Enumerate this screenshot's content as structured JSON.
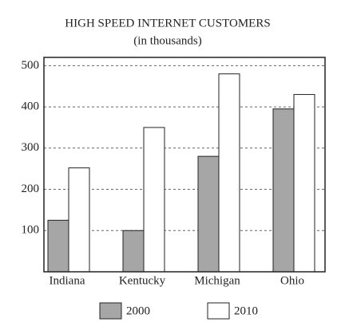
{
  "chart_data": {
    "type": "bar",
    "title": "HIGH SPEED INTERNET CUSTOMERS",
    "subtitle": "(in thousands)",
    "categories": [
      "Indiana",
      "Kentucky",
      "Michigan",
      "Ohio"
    ],
    "series": [
      {
        "name": "2000",
        "color": "#a6a6a6",
        "values": [
          125,
          100,
          280,
          395
        ]
      },
      {
        "name": "2010",
        "color": "#ffffff",
        "values": [
          252,
          350,
          480,
          430
        ]
      }
    ],
    "ylim": [
      0,
      520
    ],
    "yticks": [
      100,
      200,
      300,
      400,
      500
    ],
    "grid": true,
    "legend": "bottom"
  }
}
